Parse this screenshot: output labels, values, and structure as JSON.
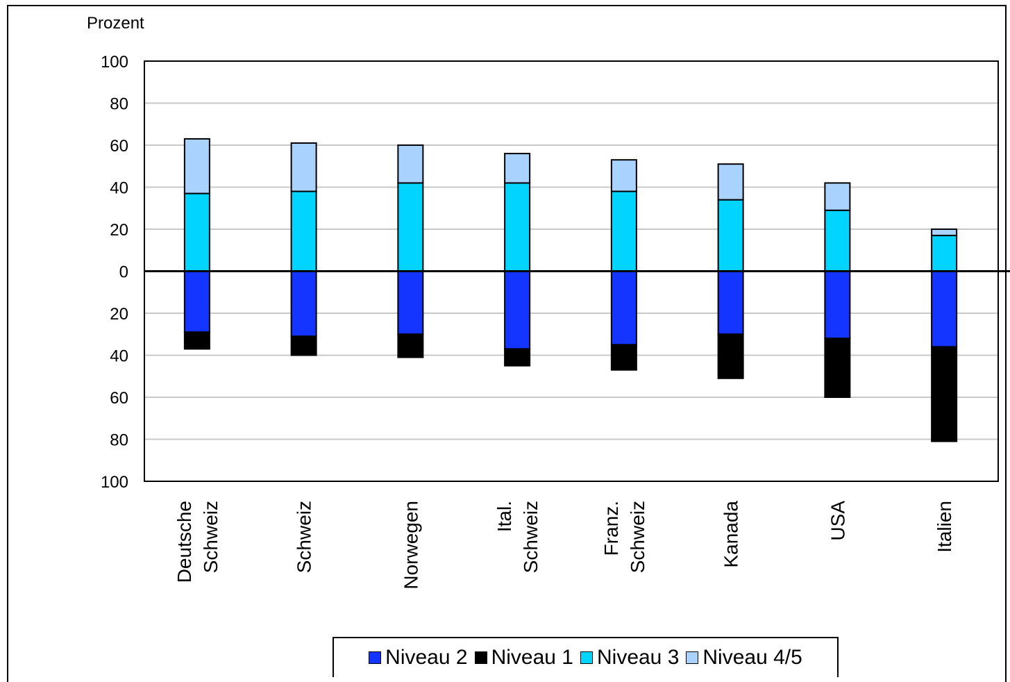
{
  "chart_data": {
    "type": "bar",
    "ylabel": "Prozent",
    "ylim": [
      -100,
      100
    ],
    "yticks": [
      100,
      80,
      60,
      40,
      20,
      0,
      20,
      40,
      60,
      80,
      100
    ],
    "grid": true,
    "legend_position": "bottom-center",
    "categories": [
      [
        "Deutsche",
        "Schweiz"
      ],
      [
        "Schweiz"
      ],
      [
        "Norwegen"
      ],
      [
        "Ital.",
        "Schweiz"
      ],
      [
        "Franz.",
        "Schweiz"
      ],
      [
        "Kanada"
      ],
      [
        "USA"
      ],
      [
        "Italien"
      ]
    ],
    "series": [
      {
        "name": "Niveau 2",
        "color": "#1434ff",
        "values": [
          -29,
          -31,
          -30,
          -37,
          -35,
          -30,
          -32,
          -36
        ]
      },
      {
        "name": "Niveau 1",
        "color": "#000000",
        "values": [
          -8,
          -9,
          -11,
          -8,
          -12,
          -21,
          -28,
          -45
        ]
      },
      {
        "name": "Niveau 3",
        "color": "#00d4ff",
        "values": [
          37,
          38,
          42,
          42,
          38,
          34,
          29,
          17
        ]
      },
      {
        "name": "Niveau 4/5",
        "color": "#a9d2ff",
        "values": [
          26,
          23,
          18,
          14,
          15,
          17,
          13,
          3
        ]
      }
    ]
  }
}
